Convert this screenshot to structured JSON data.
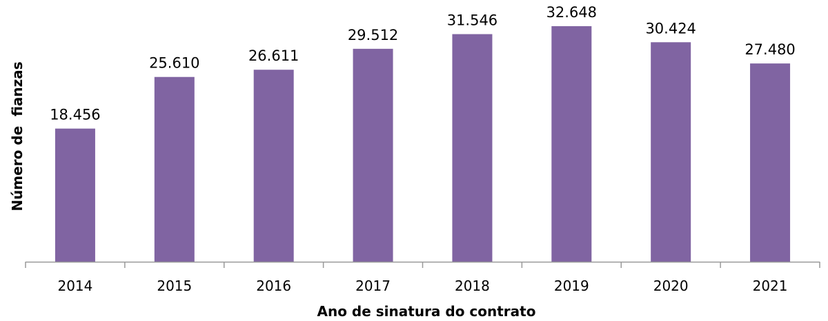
{
  "chart_data": {
    "type": "bar",
    "title": "",
    "xlabel": "Ano de sinatura do contrato",
    "ylabel": "Número de  fianzas",
    "categories": [
      "2014",
      "2015",
      "2016",
      "2017",
      "2018",
      "2019",
      "2020",
      "2021"
    ],
    "values": [
      18456,
      25610,
      26611,
      29512,
      31546,
      32648,
      30424,
      27480
    ],
    "data_labels": [
      "18.456",
      "25.610",
      "26.611",
      "29.512",
      "31.546",
      "32.648",
      "30.424",
      "27.480"
    ],
    "ylim": [
      0,
      34000
    ],
    "grid": false,
    "bar_color": "#8064A2"
  }
}
